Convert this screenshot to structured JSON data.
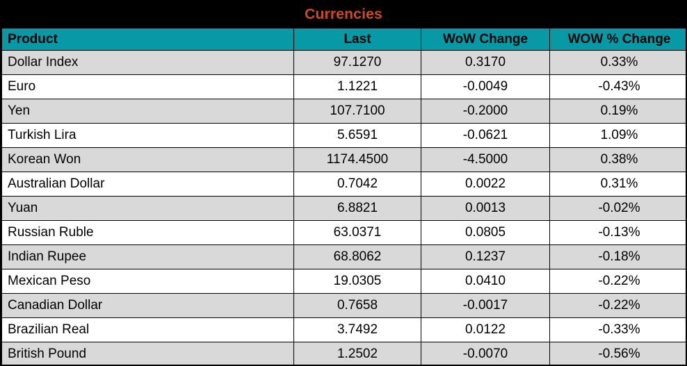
{
  "title": "Currencies",
  "chart_data": {
    "type": "table",
    "title": "Currencies",
    "columns": [
      "Product",
      "Last",
      "WoW Change",
      "WOW % Change"
    ],
    "rows": [
      [
        "Dollar Index",
        "97.1270",
        "0.3170",
        "0.33%"
      ],
      [
        "Euro",
        "1.1221",
        "-0.0049",
        "-0.43%"
      ],
      [
        "Yen",
        "107.7100",
        "-0.2000",
        "0.19%"
      ],
      [
        "Turkish Lira",
        "5.6591",
        "-0.0621",
        "1.09%"
      ],
      [
        "Korean Won",
        "1174.4500",
        "-4.5000",
        "0.38%"
      ],
      [
        "Australian Dollar",
        "0.7042",
        "0.0022",
        "0.31%"
      ],
      [
        "Yuan",
        "6.8821",
        "0.0013",
        "-0.02%"
      ],
      [
        "Russian Ruble",
        "63.0371",
        "0.0805",
        "-0.13%"
      ],
      [
        "Indian Rupee",
        "68.8062",
        "0.1237",
        "-0.18%"
      ],
      [
        "Mexican Peso",
        "19.0305",
        "0.0410",
        "-0.22%"
      ],
      [
        "Canadian Dollar",
        "0.7658",
        "-0.0017",
        "-0.22%"
      ],
      [
        "Brazilian Real",
        "3.7492",
        "0.0122",
        "-0.33%"
      ],
      [
        "British Pound",
        "1.2502",
        "-0.0070",
        "-0.56%"
      ]
    ],
    "layout_hints": {
      "row_striping": [
        "#d9d9d9",
        "#ffffff"
      ],
      "header_background": "#0899a6",
      "title_background": "#000000",
      "title_color": "#cc4b28",
      "grid": "on"
    }
  },
  "colors": {
    "title_bg": "#000000",
    "title_text": "#cc4b28",
    "header_bg": "#0899a6",
    "header_text": "#000000",
    "row_alt": "#d9d9d9",
    "row_base": "#ffffff",
    "border": "#000000"
  }
}
